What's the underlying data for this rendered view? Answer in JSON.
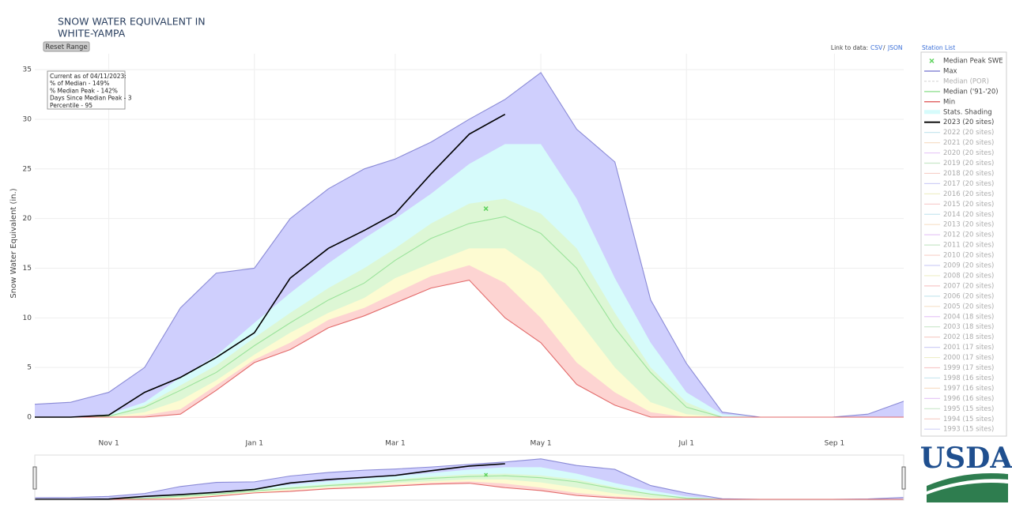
{
  "chart_data": {
    "type": "area",
    "title": [
      "SNOW WATER EQUIVALENT IN",
      "WHITE-YAMPA"
    ],
    "ylabel": "Snow Water Equivalent (in.)",
    "xlim": [
      0,
      364
    ],
    "ylim": [
      0,
      36.6
    ],
    "xticks": [
      {
        "value": 31,
        "label": "Nov 1"
      },
      {
        "value": 92,
        "label": "Jan 1"
      },
      {
        "value": 151,
        "label": "Mar 1"
      },
      {
        "value": 212,
        "label": "May 1"
      },
      {
        "value": 273,
        "label": "Jul 1"
      },
      {
        "value": 335,
        "label": "Sep 1"
      }
    ],
    "yticks": [
      0,
      5,
      10,
      15,
      20,
      25,
      30,
      35
    ],
    "grid": true,
    "x": [
      0,
      15,
      31,
      46,
      61,
      76,
      92,
      107,
      123,
      138,
      151,
      166,
      182,
      197,
      212,
      227,
      243,
      258,
      273,
      288,
      304,
      319,
      334,
      349,
      364
    ],
    "series": [
      {
        "name": "Max",
        "color": "#8a8ad6",
        "values": [
          1.3,
          1.5,
          2.5,
          5,
          11,
          14.5,
          15,
          20,
          23,
          25,
          26,
          27.7,
          30,
          32,
          34.7,
          29,
          25.7,
          11.8,
          5.4,
          0.5,
          0,
          0,
          0,
          0.3,
          1.6
        ]
      },
      {
        "name": "Median ('91-'20)",
        "color": "#9be39b",
        "values": [
          0,
          0,
          0.1,
          1,
          2.7,
          4.5,
          7.2,
          9.5,
          11.8,
          13.5,
          15.8,
          18,
          19.5,
          20.2,
          18.5,
          15,
          9,
          4.5,
          1,
          0,
          0,
          0,
          0,
          0,
          0
        ]
      },
      {
        "name": "Min",
        "color": "#e26a6a",
        "values": [
          0,
          0,
          0,
          0,
          0.3,
          2.7,
          5.5,
          6.8,
          9,
          10.2,
          11.5,
          13,
          13.8,
          10,
          7.5,
          3.3,
          1.2,
          0,
          0,
          0,
          0,
          0,
          0,
          0,
          0
        ]
      },
      {
        "name": "2023 (20 sites)",
        "color": "#000000",
        "values": [
          0,
          0,
          0.2,
          2.5,
          4,
          6,
          8.5,
          14,
          17,
          18.8,
          20.5,
          24.5,
          28.5,
          30.5,
          null,
          null,
          null,
          null,
          null,
          null,
          null,
          null,
          null,
          null,
          null
        ]
      }
    ],
    "shading": {
      "name": "Stats. Shading",
      "colors": [
        "#fdd4d2",
        "#fdfbd2",
        "#ddf7d5",
        "#d6fbfb",
        "#cfcffd"
      ],
      "bounds": [
        [
          0,
          0,
          0,
          0.2,
          0.8,
          3.2,
          5.8,
          7.5,
          9.8,
          11,
          12.5,
          14.2,
          15.3,
          13.5,
          10,
          5.5,
          2.5,
          0.5,
          0,
          0,
          0,
          0,
          0,
          0,
          0
        ],
        [
          0,
          0,
          0,
          0.5,
          1.7,
          3.7,
          6.3,
          8.5,
          10.5,
          12,
          14,
          15.5,
          17,
          17,
          14.5,
          10,
          5,
          1.5,
          0.3,
          0,
          0,
          0,
          0,
          0,
          0
        ],
        [
          0,
          0,
          0.1,
          1.2,
          3.2,
          5.2,
          8,
          10.5,
          13,
          15,
          17,
          19.5,
          21.5,
          22,
          20.5,
          17,
          10.5,
          5,
          1.5,
          0,
          0,
          0,
          0,
          0,
          0
        ],
        [
          0,
          0,
          0.3,
          1.5,
          4,
          6.2,
          9.5,
          12.5,
          15.5,
          18,
          20,
          22.5,
          25.5,
          27.5,
          27.5,
          22,
          14,
          7.5,
          2.5,
          0.3,
          0,
          0,
          0,
          0,
          0
        ]
      ]
    },
    "peak": {
      "name": "Median Peak SWE",
      "color": "#5fd35f",
      "x": 189,
      "y": 21
    },
    "legend_only": [
      "Median (POR)",
      "2022 (20 sites)",
      "2021 (20 sites)",
      "2020 (20 sites)",
      "2019 (20 sites)",
      "2018 (20 sites)",
      "2017 (20 sites)",
      "2016 (20 sites)",
      "2015 (20 sites)",
      "2014 (20 sites)",
      "2013 (20 sites)",
      "2012 (20 sites)",
      "2011 (20 sites)",
      "2010 (20 sites)",
      "2009 (20 sites)",
      "2008 (20 sites)",
      "2007 (20 sites)",
      "2006 (20 sites)",
      "2005 (20 sites)",
      "2004 (18 sites)",
      "2003 (18 sites)",
      "2002 (18 sites)",
      "2001 (17 sites)",
      "2000 (17 sites)",
      "1999 (17 sites)",
      "1998 (16 sites)",
      "1997 (16 sites)",
      "1996 (16 sites)",
      "1995 (15 sites)",
      "1994 (15 sites)",
      "1993 (15 sites)"
    ],
    "annotation": [
      "Current as of 04/11/2023:",
      "% of Median - 149%",
      "% Median Peak - 142%",
      "Days Since Median Peak - 3",
      "Percentile - 95"
    ],
    "reset_button": "Reset Range",
    "data_links": {
      "label": "Link to data:",
      "csv": "CSV",
      "separator": "/",
      "json": "JSON"
    },
    "station_list": "Station List",
    "logo": "USDA"
  }
}
